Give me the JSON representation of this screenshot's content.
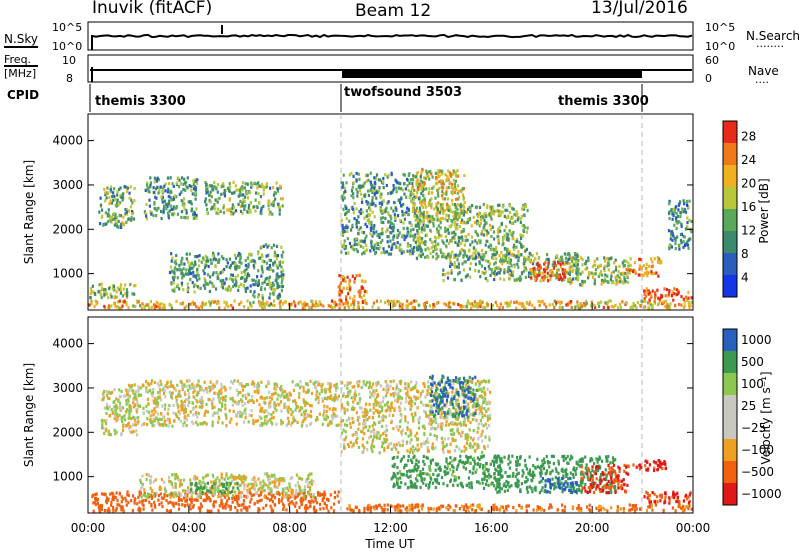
{
  "header": {
    "station": "Inuvik (fitACF)",
    "beam": "Beam 12",
    "date": "13/Jul/2016"
  },
  "strips": {
    "nsky": {
      "label": "N.Sky",
      "left_ticks": [
        "10^5",
        "10^0"
      ],
      "right_ticks": [
        "10^5",
        "10^0"
      ],
      "right_label": "N.Search",
      "right_marker": "········"
    },
    "freq": {
      "label_top": "Freq.",
      "label_bottom": "[MHz]",
      "left_ticks": [
        "10",
        "8"
      ],
      "right_ticks": [
        "60",
        "0"
      ],
      "right_label": "Nave",
      "right_marker": "····"
    },
    "cpid": {
      "label": "CPID",
      "segments": [
        {
          "name": "themis 3300",
          "start_h": 0,
          "end_h": 10
        },
        {
          "name": "twofsound 3503",
          "start_h": 10,
          "end_h": 22
        },
        {
          "name": "themis 3300",
          "start_h": 22,
          "end_h": 24
        }
      ]
    }
  },
  "axes": {
    "time_ticks": [
      "00:00",
      "04:00",
      "08:00",
      "12:00",
      "16:00",
      "20:00",
      "00:00"
    ],
    "time_label": "Time UT",
    "range_ticks": [
      "1000",
      "2000",
      "3000",
      "4000"
    ],
    "range_label": "Slant Range [km]"
  },
  "colorbars": {
    "power": {
      "label": "Power [dB]",
      "ticks": [
        "28",
        "24",
        "20",
        "16",
        "12",
        "8",
        "4"
      ]
    },
    "velocity": {
      "label": "Velocity  [m s⁻¹]",
      "ticks": [
        "1000",
        "500",
        "100",
        "25",
        "−25",
        "−100",
        "−500",
        "−1000"
      ]
    }
  },
  "colors": {
    "power_scale": [
      "#1436e6",
      "#2a5dbd",
      "#3b8a6e",
      "#5aa85a",
      "#b8c83a",
      "#f0b020",
      "#f07818",
      "#e82a18"
    ],
    "velocity_scale": [
      "#e01818",
      "#f06010",
      "#f0a020",
      "#c8c8c0",
      "#c8c8c0",
      "#8cc850",
      "#3c9a50",
      "#2860c0"
    ],
    "ground_scatter": "#c0c0b8"
  },
  "chart_data": [
    {
      "type": "heatmap",
      "title": "Power",
      "xlabel": "Time UT",
      "ylabel": "Slant Range [km]",
      "x_range_hours": [
        0,
        24
      ],
      "ylim_km": [
        180,
        4600
      ],
      "colorbar_label": "Power [dB]",
      "colorbar_range": [
        0,
        32
      ],
      "regions": [
        {
          "t": [
            0.0,
            24.0
          ],
          "r": [
            180,
            420
          ],
          "value": 22
        },
        {
          "t": [
            0.0,
            2.0
          ],
          "r": [
            420,
            800
          ],
          "value": 16
        },
        {
          "t": [
            0.4,
            1.9
          ],
          "r": [
            2000,
            3000
          ],
          "value": 14
        },
        {
          "t": [
            2.2,
            4.4
          ],
          "r": [
            2200,
            3200
          ],
          "value": 12
        },
        {
          "t": [
            4.6,
            7.8
          ],
          "r": [
            2300,
            3100
          ],
          "value": 14
        },
        {
          "t": [
            3.2,
            6.6
          ],
          "r": [
            550,
            1500
          ],
          "value": 13
        },
        {
          "t": [
            6.5,
            7.8
          ],
          "r": [
            400,
            1700
          ],
          "value": 12
        },
        {
          "t": [
            9.9,
            11.1
          ],
          "r": [
            300,
            1000
          ],
          "value": 26
        },
        {
          "t": [
            10.0,
            13.4
          ],
          "r": [
            1400,
            3300
          ],
          "value": 12
        },
        {
          "t": [
            12.8,
            15.0
          ],
          "r": [
            2200,
            3400
          ],
          "value": 20
        },
        {
          "t": [
            13.0,
            17.5
          ],
          "r": [
            1300,
            2600
          ],
          "value": 15
        },
        {
          "t": [
            14.0,
            19.5
          ],
          "r": [
            800,
            1500
          ],
          "value": 14
        },
        {
          "t": [
            17.5,
            19.0
          ],
          "r": [
            800,
            1300
          ],
          "value": 28
        },
        {
          "t": [
            19.0,
            21.5
          ],
          "r": [
            700,
            1400
          ],
          "value": 16
        },
        {
          "t": [
            21.3,
            22.8
          ],
          "r": [
            900,
            1400
          ],
          "value": 24
        },
        {
          "t": [
            22.0,
            24.0
          ],
          "r": [
            350,
            700
          ],
          "value": 28
        },
        {
          "t": [
            23.0,
            24.0
          ],
          "r": [
            1500,
            2700
          ],
          "value": 10
        }
      ]
    },
    {
      "type": "heatmap",
      "title": "Velocity",
      "xlabel": "Time UT",
      "ylabel": "Slant Range [km]",
      "x_range_hours": [
        0,
        24
      ],
      "ylim_km": [
        180,
        4600
      ],
      "colorbar_label": "Velocity [m s⁻¹]",
      "colorbar_range": [
        -1000,
        1000
      ],
      "regions": [
        {
          "t": [
            0.0,
            10.0
          ],
          "r": [
            180,
            700
          ],
          "value": -300
        },
        {
          "t": [
            0.5,
            2.0
          ],
          "r": [
            1900,
            3000
          ],
          "value": 0
        },
        {
          "t": [
            1.5,
            10.0
          ],
          "r": [
            2100,
            3200
          ],
          "value": 0
        },
        {
          "t": [
            2.0,
            9.0
          ],
          "r": [
            500,
            1100
          ],
          "value": 0
        },
        {
          "t": [
            4.0,
            6.0
          ],
          "r": [
            600,
            900
          ],
          "value": 150
        },
        {
          "t": [
            10.0,
            16.0
          ],
          "r": [
            1500,
            3200
          ],
          "value": 0
        },
        {
          "t": [
            12.0,
            16.5
          ],
          "r": [
            700,
            1500
          ],
          "value": 200
        },
        {
          "t": [
            13.5,
            15.5
          ],
          "r": [
            2300,
            3300
          ],
          "value": 500
        },
        {
          "t": [
            16.0,
            21.0
          ],
          "r": [
            600,
            1500
          ],
          "value": 300
        },
        {
          "t": [
            18.0,
            19.5
          ],
          "r": [
            600,
            1000
          ],
          "value": 800
        },
        {
          "t": [
            19.5,
            21.5
          ],
          "r": [
            600,
            1300
          ],
          "value": -500
        },
        {
          "t": [
            10.0,
            24.0
          ],
          "r": [
            180,
            400
          ],
          "value": -150
        },
        {
          "t": [
            21.5,
            23.0
          ],
          "r": [
            1100,
            1400
          ],
          "value": -800
        },
        {
          "t": [
            22.0,
            24.0
          ],
          "r": [
            350,
            700
          ],
          "value": -500
        }
      ]
    }
  ]
}
